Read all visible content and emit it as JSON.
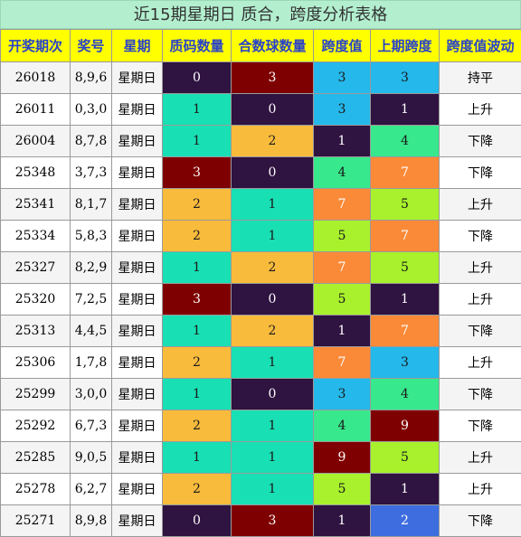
{
  "title": "近15期星期日 质合，跨度分析表格",
  "headers": [
    "开奖期次",
    "奖号",
    "星期",
    "质码数量",
    "合数球数量",
    "跨度值",
    "上期跨度",
    "跨度值波动"
  ],
  "colors": {
    "dk": "#2f1340",
    "rd": "#7f0000",
    "tl": "#18e0b4",
    "or": "#f9bb3c",
    "sb": "#25b8ea",
    "gr": "#38e88c",
    "ln": "#a8f12c",
    "od": "#fa8a38",
    "bl": "#3e6de0"
  },
  "rows": [
    {
      "period": "26018",
      "numbers": "8,9,6",
      "weekday": "星期日",
      "prime": "0",
      "prime_c": "dk",
      "composite": "3",
      "composite_c": "rd",
      "span": "3",
      "span_c": "sb",
      "prev_span": "3",
      "prev_span_c": "sb",
      "trend": "持平"
    },
    {
      "period": "26011",
      "numbers": "0,3,0",
      "weekday": "星期日",
      "prime": "1",
      "prime_c": "tl",
      "composite": "0",
      "composite_c": "dk",
      "span": "3",
      "span_c": "sb",
      "prev_span": "1",
      "prev_span_c": "dk",
      "trend": "上升"
    },
    {
      "period": "26004",
      "numbers": "8,7,8",
      "weekday": "星期日",
      "prime": "1",
      "prime_c": "tl",
      "composite": "2",
      "composite_c": "or",
      "span": "1",
      "span_c": "dk",
      "prev_span": "4",
      "prev_span_c": "gr",
      "trend": "下降"
    },
    {
      "period": "25348",
      "numbers": "3,7,3",
      "weekday": "星期日",
      "prime": "3",
      "prime_c": "rd",
      "composite": "0",
      "composite_c": "dk",
      "span": "4",
      "span_c": "gr",
      "prev_span": "7",
      "prev_span_c": "od",
      "trend": "下降"
    },
    {
      "period": "25341",
      "numbers": "8,1,7",
      "weekday": "星期日",
      "prime": "2",
      "prime_c": "or",
      "composite": "1",
      "composite_c": "tl",
      "span": "7",
      "span_c": "od",
      "prev_span": "5",
      "prev_span_c": "ln",
      "trend": "上升"
    },
    {
      "period": "25334",
      "numbers": "5,8,3",
      "weekday": "星期日",
      "prime": "2",
      "prime_c": "or",
      "composite": "1",
      "composite_c": "tl",
      "span": "5",
      "span_c": "ln",
      "prev_span": "7",
      "prev_span_c": "od",
      "trend": "下降"
    },
    {
      "period": "25327",
      "numbers": "8,2,9",
      "weekday": "星期日",
      "prime": "1",
      "prime_c": "tl",
      "composite": "2",
      "composite_c": "or",
      "span": "7",
      "span_c": "od",
      "prev_span": "5",
      "prev_span_c": "ln",
      "trend": "上升"
    },
    {
      "period": "25320",
      "numbers": "7,2,5",
      "weekday": "星期日",
      "prime": "3",
      "prime_c": "rd",
      "composite": "0",
      "composite_c": "dk",
      "span": "5",
      "span_c": "ln",
      "prev_span": "1",
      "prev_span_c": "dk",
      "trend": "上升"
    },
    {
      "period": "25313",
      "numbers": "4,4,5",
      "weekday": "星期日",
      "prime": "1",
      "prime_c": "tl",
      "composite": "2",
      "composite_c": "or",
      "span": "1",
      "span_c": "dk",
      "prev_span": "7",
      "prev_span_c": "od",
      "trend": "下降"
    },
    {
      "period": "25306",
      "numbers": "1,7,8",
      "weekday": "星期日",
      "prime": "2",
      "prime_c": "or",
      "composite": "1",
      "composite_c": "tl",
      "span": "7",
      "span_c": "od",
      "prev_span": "3",
      "prev_span_c": "sb",
      "trend": "上升"
    },
    {
      "period": "25299",
      "numbers": "3,0,0",
      "weekday": "星期日",
      "prime": "1",
      "prime_c": "tl",
      "composite": "0",
      "composite_c": "dk",
      "span": "3",
      "span_c": "sb",
      "prev_span": "4",
      "prev_span_c": "gr",
      "trend": "下降"
    },
    {
      "period": "25292",
      "numbers": "6,7,3",
      "weekday": "星期日",
      "prime": "2",
      "prime_c": "or",
      "composite": "1",
      "composite_c": "tl",
      "span": "4",
      "span_c": "gr",
      "prev_span": "9",
      "prev_span_c": "rd",
      "trend": "下降"
    },
    {
      "period": "25285",
      "numbers": "9,0,5",
      "weekday": "星期日",
      "prime": "1",
      "prime_c": "tl",
      "composite": "1",
      "composite_c": "tl",
      "span": "9",
      "span_c": "rd",
      "prev_span": "5",
      "prev_span_c": "ln",
      "trend": "上升"
    },
    {
      "period": "25278",
      "numbers": "6,2,7",
      "weekday": "星期日",
      "prime": "2",
      "prime_c": "or",
      "composite": "1",
      "composite_c": "tl",
      "span": "5",
      "span_c": "ln",
      "prev_span": "1",
      "prev_span_c": "dk",
      "trend": "上升"
    },
    {
      "period": "25271",
      "numbers": "8,9,8",
      "weekday": "星期日",
      "prime": "0",
      "prime_c": "dk",
      "composite": "3",
      "composite_c": "rd",
      "span": "1",
      "span_c": "dk",
      "prev_span": "2",
      "prev_span_c": "bl",
      "trend": "下降"
    }
  ]
}
